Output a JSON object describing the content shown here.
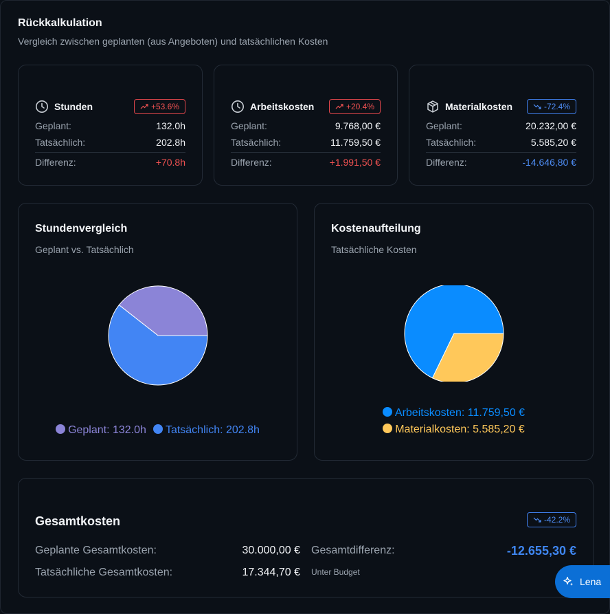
{
  "header": {
    "title": "Rückkalkulation",
    "subtitle": "Vergleich zwischen geplanten (aus Angeboten) und tatsächlichen Kosten"
  },
  "kpis": [
    {
      "label": "Stunden",
      "icon": "clock-icon",
      "badge": "+53.6%",
      "trend": "up",
      "planned_label": "Geplant:",
      "planned": "132.0h",
      "actual_label": "Tatsächlich:",
      "actual": "202.8h",
      "diff_label": "Differenz:",
      "diff": "+70.8h"
    },
    {
      "label": "Arbeitskosten",
      "icon": "clock-icon",
      "badge": "+20.4%",
      "trend": "up",
      "planned_label": "Geplant:",
      "planned": "9.768,00 €",
      "actual_label": "Tatsächlich:",
      "actual": "11.759,50 €",
      "diff_label": "Differenz:",
      "diff": "+1.991,50 €"
    },
    {
      "label": "Materialkosten",
      "icon": "package-icon",
      "badge": "-72.4%",
      "trend": "down",
      "planned_label": "Geplant:",
      "planned": "20.232,00 €",
      "actual_label": "Tatsächlich:",
      "actual": "5.585,20 €",
      "diff_label": "Differenz:",
      "diff": "-14.646,80 €"
    }
  ],
  "colors": {
    "red": "#f05252",
    "blue": "#4e8df5",
    "purple": "#8b84d7",
    "hours_blue": "#4285f4",
    "cost_blue": "#0a8cff",
    "yellow": "#ffc85a"
  },
  "chart_data": [
    {
      "type": "pie",
      "title": "Stundenvergleich",
      "subtitle": "Geplant vs. Tatsächlich",
      "slices": [
        {
          "label": "Geplant: 132.0h",
          "value": 132.0,
          "color": "#8b84d7"
        },
        {
          "label": "Tatsächlich: 202.8h",
          "value": 202.8,
          "color": "#4285f4"
        }
      ]
    },
    {
      "type": "pie",
      "title": "Kostenaufteilung",
      "subtitle": "Tatsächliche Kosten",
      "slices": [
        {
          "label": "Arbeitskosten: 11.759,50 €",
          "value": 11759.5,
          "color": "#0a8cff"
        },
        {
          "label": "Materialkosten: 5.585,20 €",
          "value": 5585.2,
          "color": "#ffc85a"
        }
      ]
    }
  ],
  "total": {
    "title": "Gesamtkosten",
    "badge": "-42.2%",
    "planned_label": "Geplante Gesamtkosten:",
    "planned": "30.000,00 €",
    "actual_label": "Tatsächliche Gesamtkosten:",
    "actual": "17.344,70 €",
    "diff_label": "Gesamtdifferenz:",
    "diff": "-12.655,30 €",
    "note": "Unter Budget"
  },
  "assistant": {
    "label": "Lena",
    "icon": "sparkle-icon"
  }
}
